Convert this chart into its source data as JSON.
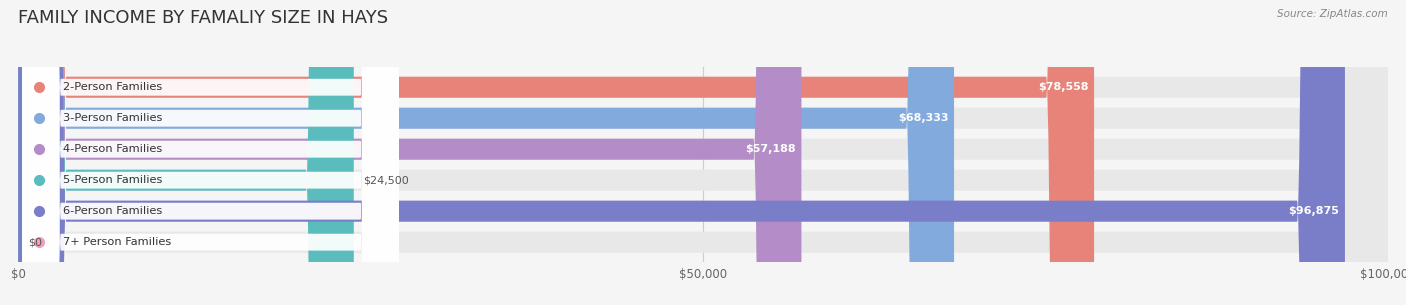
{
  "title": "FAMILY INCOME BY FAMALIY SIZE IN HAYS",
  "source": "Source: ZipAtlas.com",
  "categories": [
    "2-Person Families",
    "3-Person Families",
    "4-Person Families",
    "5-Person Families",
    "6-Person Families",
    "7+ Person Families"
  ],
  "values": [
    78558,
    68333,
    57188,
    24500,
    96875,
    0
  ],
  "bar_colors": [
    "#E8837A",
    "#82AADC",
    "#B48DC8",
    "#5BBCBE",
    "#7A7DC8",
    "#F0A0B8"
  ],
  "xlim": [
    0,
    100000
  ],
  "xticks": [
    0,
    50000,
    100000
  ],
  "xtick_labels": [
    "$0",
    "$50,000",
    "$100,000"
  ],
  "background_color": "#f5f5f5",
  "bar_background_color": "#e8e8e8",
  "title_fontsize": 13,
  "bar_height": 0.68,
  "value_labels": [
    "$78,558",
    "$68,333",
    "$57,188",
    "$24,500",
    "$96,875",
    "$0"
  ]
}
